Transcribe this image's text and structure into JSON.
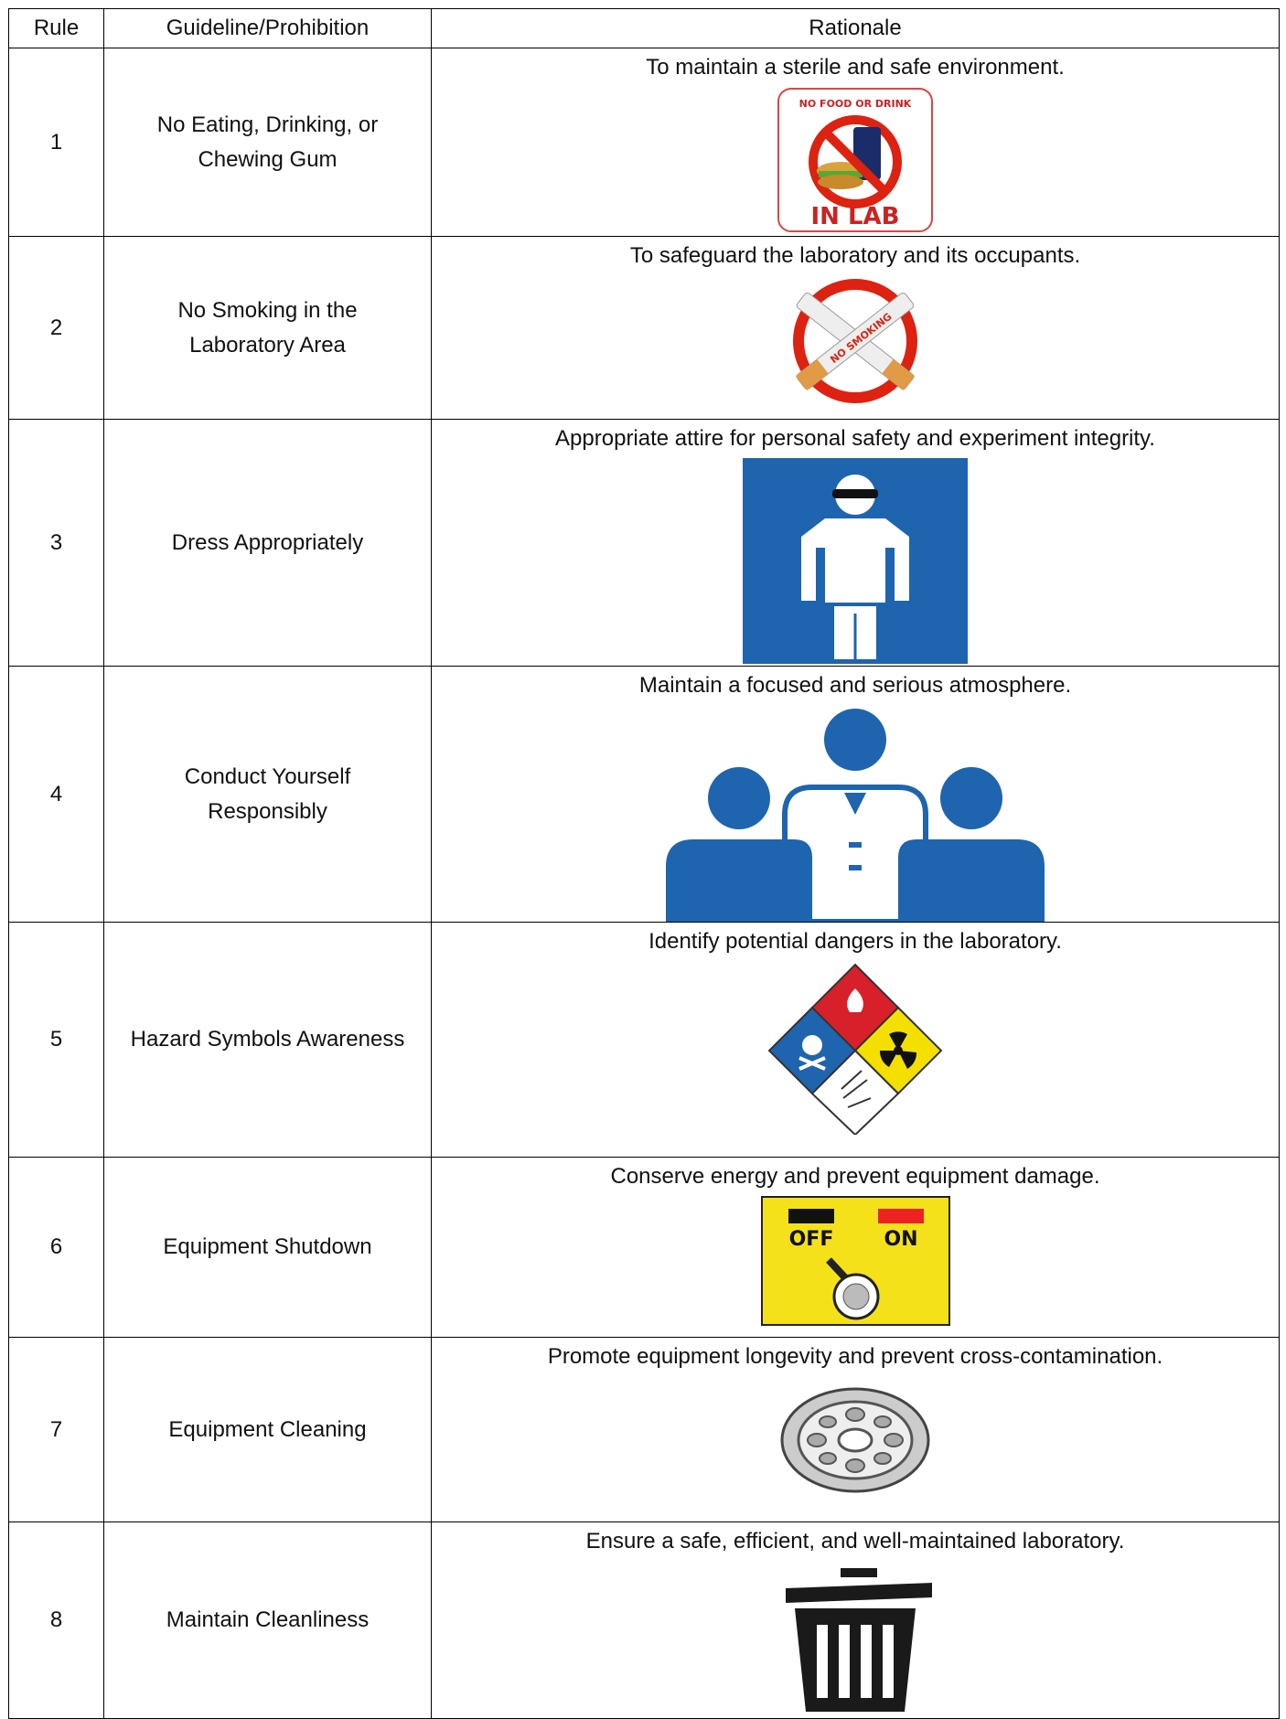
{
  "table": {
    "header": [
      "Rule",
      "Guideline/Prohibition",
      "Rationale"
    ],
    "rows": [
      {
        "rule": 1,
        "guideline": [
          "No Eating, Drinking, or",
          "Chewing Gum"
        ],
        "rationale": "To maintain a sterile and safe environment.",
        "icon_text": [
          "NO FOOD OR DRINK",
          "IN LAB"
        ]
      },
      {
        "rule": 2,
        "guideline": [
          "No Smoking in the",
          "Laboratory Area"
        ],
        "rationale": "To safeguard the laboratory and its occupants.",
        "icon_text": [
          "NO SMOKING"
        ]
      },
      {
        "rule": 3,
        "guideline": [
          "Dress Appropriately"
        ],
        "rationale": "Appropriate attire for personal safety and experiment integrity."
      },
      {
        "rule": 4,
        "guideline": [
          "Conduct Yourself",
          "Responsibly"
        ],
        "rationale": "Maintain a focused and serious atmosphere."
      },
      {
        "rule": 5,
        "guideline": [
          "Hazard Symbols Awareness"
        ],
        "rationale": "Identify potential dangers in the laboratory."
      },
      {
        "rule": 6,
        "guideline": [
          "Equipment Shutdown"
        ],
        "rationale": "Conserve energy and prevent equipment damage.",
        "icon_text": [
          "OFF",
          "ON"
        ]
      },
      {
        "rule": 7,
        "guideline": [
          "Equipment Cleaning"
        ],
        "rationale": "Promote equipment longevity and prevent cross-contamination."
      },
      {
        "rule": 8,
        "guideline": [
          "Maintain Cleanliness"
        ],
        "rationale": "Ensure a safe, efficient, and well-maintained laboratory."
      }
    ]
  }
}
